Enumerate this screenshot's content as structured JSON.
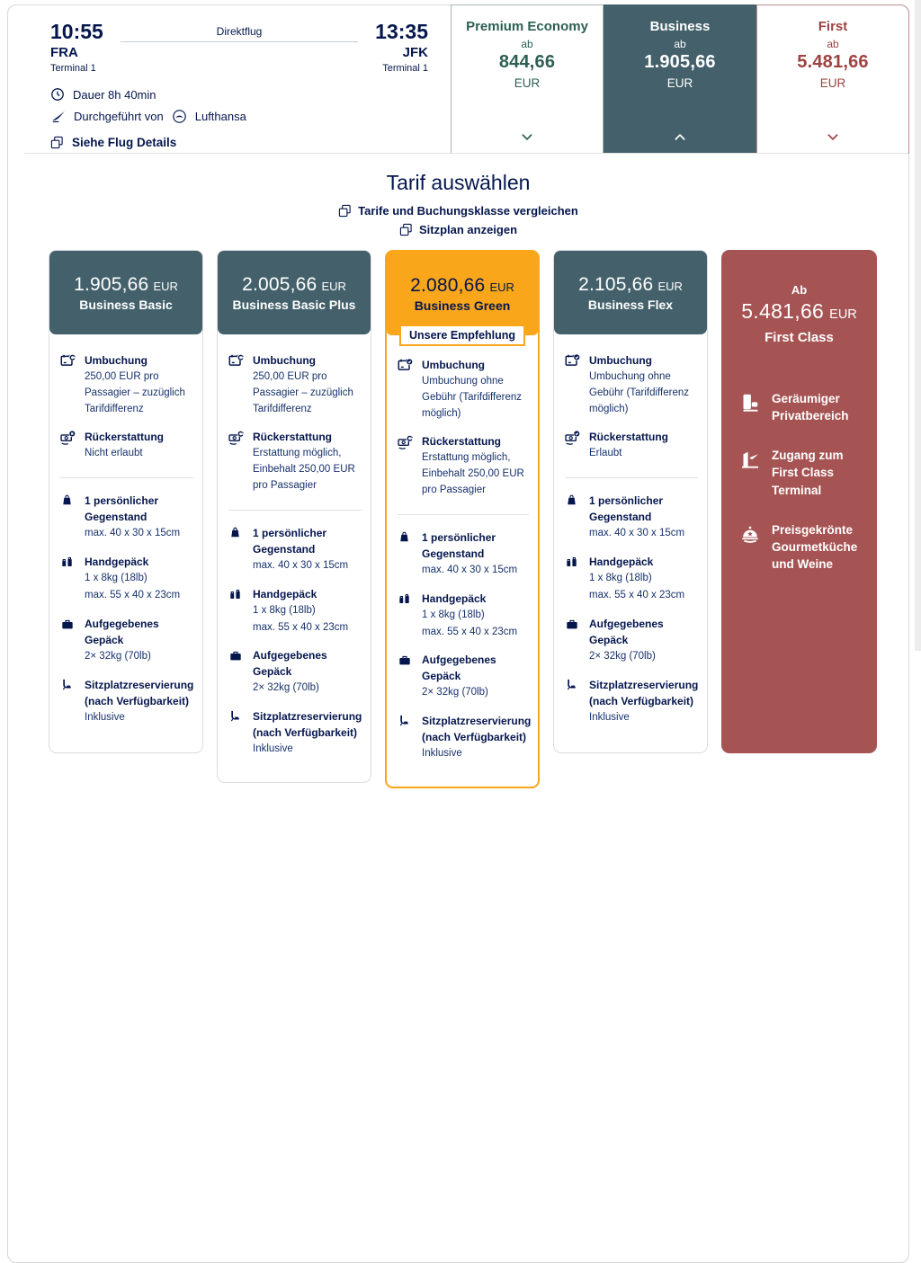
{
  "colors": {
    "navy": "#05164D",
    "slate": "#44616B",
    "orange": "#F9A61A",
    "first_red": "#A65353",
    "first_text": "#9D4343",
    "premium_green": "#2D5F53",
    "card_border": "#DCDCDC"
  },
  "flight": {
    "departure_time": "10:55",
    "departure_airport": "FRA",
    "departure_terminal": "Terminal 1",
    "route_type": "Direktflug",
    "arrival_time": "13:35",
    "arrival_airport": "JFK",
    "arrival_terminal": "Terminal 1",
    "duration_label": "Dauer 8h 40min",
    "operated_by_label": "Durchgeführt von",
    "operator_name": "Lufthansa",
    "details_link_label": "Siehe Flug Details"
  },
  "class_tabs": [
    {
      "name": "Premium Economy",
      "ab_label": "ab",
      "price": "844,66",
      "currency": "EUR",
      "state": "collapsed",
      "chevron": "chevron-down-icon"
    },
    {
      "name": "Business",
      "ab_label": "ab",
      "price": "1.905,66",
      "currency": "EUR",
      "state": "expanded",
      "chevron": "chevron-up-icon"
    },
    {
      "name": "First",
      "ab_label": "ab",
      "price": "5.481,66",
      "currency": "EUR",
      "state": "collapsed",
      "chevron": "chevron-down-icon"
    }
  ],
  "fare_section": {
    "title": "Tarif auswählen",
    "compare_link_label": "Tarife und Buchungsklasse vergleichen",
    "seatmap_link_label": "Sitzplan anzeigen"
  },
  "fare_cards": [
    {
      "price": "1.905,66",
      "currency": "EUR",
      "name": "Business Basic",
      "recommended": false,
      "policies": [
        {
          "icon": "calendar-sync-icon",
          "title": "Umbuchung",
          "desc": [
            "250,00 EUR pro Passagier – zuzüglich Tarifdifferenz"
          ]
        },
        {
          "icon": "refund-x-icon",
          "title": "Rückerstattung",
          "desc": [
            "Nicht erlaubt"
          ]
        }
      ],
      "baggage": [
        {
          "icon": "personal-item-icon",
          "title": "1 persönlicher Gegenstand",
          "desc": [
            "max. 40 x 30 x 15cm"
          ]
        },
        {
          "icon": "hand-luggage-icon",
          "title": "Handgepäck",
          "desc": [
            "1 x 8kg (18lb)",
            "max. 55 x 40 x 23cm"
          ]
        },
        {
          "icon": "checked-baggage-icon",
          "title": "Aufgegebenes Gepäck",
          "desc": [
            "2× 32kg (70lb)"
          ]
        },
        {
          "icon": "seat-icon",
          "title": "Sitzplatzreservierung (nach Verfügbarkeit)",
          "desc": [
            "Inklusive"
          ]
        }
      ]
    },
    {
      "price": "2.005,66",
      "currency": "EUR",
      "name": "Business Basic Plus",
      "recommended": false,
      "policies": [
        {
          "icon": "calendar-sync-icon",
          "title": "Umbuchung",
          "desc": [
            "250,00 EUR pro Passagier – zuzüglich Tarifdifferenz"
          ]
        },
        {
          "icon": "refund-sync-icon",
          "title": "Rückerstattung",
          "desc": [
            "Erstattung möglich, Einbehalt 250,00 EUR pro Passagier"
          ]
        }
      ],
      "baggage": [
        {
          "icon": "personal-item-icon",
          "title": "1 persönlicher Gegenstand",
          "desc": [
            "max. 40 x 30 x 15cm"
          ]
        },
        {
          "icon": "hand-luggage-icon",
          "title": "Handgepäck",
          "desc": [
            "1 x 8kg (18lb)",
            "max. 55 x 40 x 23cm"
          ]
        },
        {
          "icon": "checked-baggage-icon",
          "title": "Aufgegebenes Gepäck",
          "desc": [
            "2× 32kg (70lb)"
          ]
        },
        {
          "icon": "seat-icon",
          "title": "Sitzplatzreservierung (nach Verfügbarkeit)",
          "desc": [
            "Inklusive"
          ]
        }
      ]
    },
    {
      "price": "2.080,66",
      "currency": "EUR",
      "name": "Business Green",
      "recommended": true,
      "badge_label": "Unsere Empfehlung",
      "policies": [
        {
          "icon": "calendar-check-icon",
          "title": "Umbuchung",
          "desc": [
            "Umbuchung ohne Gebühr (Tarifdifferenz möglich)"
          ]
        },
        {
          "icon": "refund-sync-icon",
          "title": "Rückerstattung",
          "desc": [
            "Erstattung möglich, Einbehalt 250,00 EUR pro Passagier"
          ]
        }
      ],
      "baggage": [
        {
          "icon": "personal-item-icon",
          "title": "1 persönlicher Gegenstand",
          "desc": [
            "max. 40 x 30 x 15cm"
          ]
        },
        {
          "icon": "hand-luggage-icon",
          "title": "Handgepäck",
          "desc": [
            "1 x 8kg (18lb)",
            "max. 55 x 40 x 23cm"
          ]
        },
        {
          "icon": "checked-baggage-icon",
          "title": "Aufgegebenes Gepäck",
          "desc": [
            "2× 32kg (70lb)"
          ]
        },
        {
          "icon": "seat-icon",
          "title": "Sitzplatzreservierung (nach Verfügbarkeit)",
          "desc": [
            "Inklusive"
          ]
        }
      ]
    },
    {
      "price": "2.105,66",
      "currency": "EUR",
      "name": "Business Flex",
      "recommended": false,
      "policies": [
        {
          "icon": "calendar-check-icon",
          "title": "Umbuchung",
          "desc": [
            "Umbuchung ohne Gebühr (Tarifdifferenz möglich)"
          ]
        },
        {
          "icon": "refund-check-icon",
          "title": "Rückerstattung",
          "desc": [
            "Erlaubt"
          ]
        }
      ],
      "baggage": [
        {
          "icon": "personal-item-icon",
          "title": "1 persönlicher Gegenstand",
          "desc": [
            "max. 40 x 30 x 15cm"
          ]
        },
        {
          "icon": "hand-luggage-icon",
          "title": "Handgepäck",
          "desc": [
            "1 x 8kg (18lb)",
            "max. 55 x 40 x 23cm"
          ]
        },
        {
          "icon": "checked-baggage-icon",
          "title": "Aufgegebenes Gepäck",
          "desc": [
            "2× 32kg (70lb)"
          ]
        },
        {
          "icon": "seat-icon",
          "title": "Sitzplatzreservierung (nach Verfügbarkeit)",
          "desc": [
            "Inklusive"
          ]
        }
      ]
    }
  ],
  "first_class_card": {
    "prefix": "Ab",
    "price": "5.481,66",
    "currency": "EUR",
    "name": "First Class",
    "features": [
      {
        "icon": "private-suite-icon",
        "label": "Geräumiger Privatbereich"
      },
      {
        "icon": "first-class-terminal-icon",
        "label": "Zugang zum First Class Terminal"
      },
      {
        "icon": "gourmet-cuisine-icon",
        "label": "Preisgekrönte Gourmetküche und Weine"
      }
    ]
  }
}
